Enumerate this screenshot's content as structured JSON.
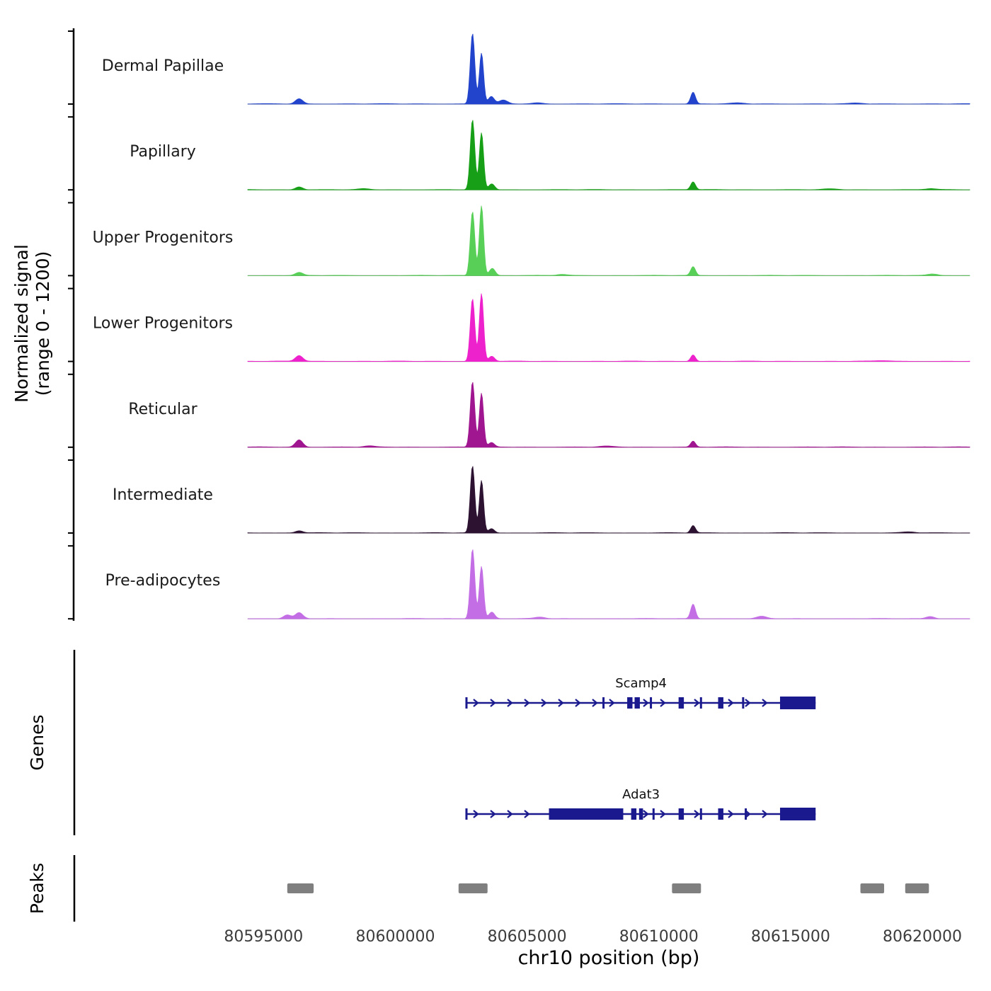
{
  "figure": {
    "y_axis_label_line1": "Normalized signal",
    "y_axis_label_line2": "(range 0 - 1200)",
    "genes_section_label": "Genes",
    "peaks_section_label": "Peaks",
    "x_axis_label": "chr10 position (bp)"
  },
  "chart_data": {
    "type": "area",
    "description": "Genome-browser style figure: seven normalized signal tracks over a chr10 region, two gene models (Scamp4, Adat3) and a peaks annotation track.",
    "x_range_bp": [
      80594400,
      80621800
    ],
    "x_ticks_bp": [
      80595000,
      80600000,
      80605000,
      80610000,
      80615000,
      80620000
    ],
    "y_range_per_track": [
      0,
      1200
    ],
    "bump_format": "[position_bp, height_fraction_of_1200_max, sigma_bp]",
    "tracks": [
      {
        "label": "Dermal Papillae",
        "color": "#2244cc",
        "bumps": [
          [
            80596350,
            0.07,
            140
          ],
          [
            80602930,
            0.97,
            85
          ],
          [
            80603270,
            0.7,
            80
          ],
          [
            80603640,
            0.1,
            110
          ],
          [
            80604100,
            0.05,
            160
          ],
          [
            80605400,
            0.015,
            200
          ],
          [
            80611300,
            0.16,
            90
          ],
          [
            80613000,
            0.012,
            250
          ],
          [
            80617500,
            0.01,
            250
          ]
        ]
      },
      {
        "label": "Papillary",
        "color": "#17a017",
        "bumps": [
          [
            80596350,
            0.04,
            140
          ],
          [
            80598800,
            0.012,
            200
          ],
          [
            80602930,
            0.96,
            85
          ],
          [
            80603270,
            0.78,
            80
          ],
          [
            80603660,
            0.08,
            110
          ],
          [
            80611300,
            0.11,
            90
          ],
          [
            80616500,
            0.01,
            250
          ],
          [
            80620300,
            0.015,
            200
          ]
        ]
      },
      {
        "label": "Upper Progenitors",
        "color": "#58d058",
        "bumps": [
          [
            80596350,
            0.04,
            140
          ],
          [
            80602930,
            0.88,
            85
          ],
          [
            80603270,
            0.96,
            80
          ],
          [
            80603680,
            0.1,
            110
          ],
          [
            80606300,
            0.015,
            200
          ],
          [
            80611300,
            0.12,
            90
          ],
          [
            80620400,
            0.02,
            200
          ]
        ]
      },
      {
        "label": "Lower Progenitors",
        "color": "#ee22cc",
        "bumps": [
          [
            80596350,
            0.08,
            140
          ],
          [
            80602930,
            0.86,
            85
          ],
          [
            80603270,
            0.93,
            80
          ],
          [
            80603660,
            0.07,
            110
          ],
          [
            80611300,
            0.09,
            90
          ],
          [
            80618500,
            0.01,
            250
          ]
        ]
      },
      {
        "label": "Reticular",
        "color": "#a01690",
        "bumps": [
          [
            80596350,
            0.1,
            140
          ],
          [
            80599000,
            0.015,
            200
          ],
          [
            80602930,
            0.9,
            85
          ],
          [
            80603270,
            0.74,
            80
          ],
          [
            80603650,
            0.06,
            110
          ],
          [
            80608000,
            0.012,
            250
          ],
          [
            80611300,
            0.08,
            90
          ]
        ]
      },
      {
        "label": "Intermediate",
        "color": "#2d1232",
        "bumps": [
          [
            80596350,
            0.03,
            140
          ],
          [
            80602930,
            0.92,
            85
          ],
          [
            80603270,
            0.72,
            80
          ],
          [
            80603650,
            0.06,
            110
          ],
          [
            80611300,
            0.1,
            90
          ],
          [
            80619500,
            0.012,
            250
          ]
        ]
      },
      {
        "label": "Pre-adipocytes",
        "color": "#c46ee6",
        "bumps": [
          [
            80595900,
            0.05,
            140
          ],
          [
            80596350,
            0.08,
            140
          ],
          [
            80602930,
            0.96,
            85
          ],
          [
            80603270,
            0.72,
            80
          ],
          [
            80603660,
            0.09,
            110
          ],
          [
            80605500,
            0.02,
            200
          ],
          [
            80611300,
            0.2,
            90
          ],
          [
            80613900,
            0.03,
            180
          ],
          [
            80620300,
            0.03,
            160
          ]
        ]
      }
    ],
    "gene_color": "#1a1a8e",
    "genes": [
      {
        "name": "Scamp4",
        "start": 80602700,
        "end": 80615950,
        "strand": "+",
        "exon_ticks": [
          80602700,
          80607900,
          80609700,
          80611600,
          80613200
        ],
        "thick_boxes": [
          [
            80608800,
            80609000
          ],
          [
            80609080,
            80609280
          ],
          [
            80610750,
            80610950
          ],
          [
            80612250,
            80612450
          ]
        ],
        "end_box": [
          80614600,
          80615950
        ]
      },
      {
        "name": "Adat3",
        "start": 80602700,
        "end": 80615950,
        "strand": "+",
        "exon_ticks": [
          80602700,
          80609800,
          80611600,
          80613300
        ],
        "thick_boxes": [
          [
            80605830,
            80608650
          ],
          [
            80608950,
            80609150
          ],
          [
            80609250,
            80609400
          ],
          [
            80610750,
            80610950
          ],
          [
            80612250,
            80612450
          ]
        ],
        "end_box": [
          80614600,
          80615950
        ]
      }
    ],
    "peak_color": "#7f7f7f",
    "peak_regions_bp": [
      [
        80595900,
        80596900
      ],
      [
        80602400,
        80603500
      ],
      [
        80610500,
        80611600
      ],
      [
        80617650,
        80618550
      ],
      [
        80619350,
        80620250
      ]
    ]
  }
}
